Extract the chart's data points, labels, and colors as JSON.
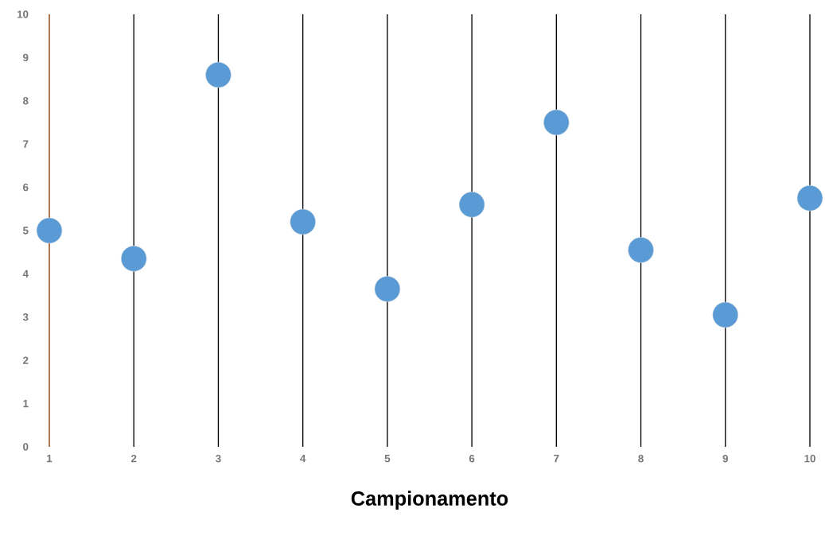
{
  "chart_data": {
    "type": "scatter",
    "xlabel": "Campionamento",
    "x": [
      1,
      2,
      3,
      4,
      5,
      6,
      7,
      8,
      9,
      10
    ],
    "values": [
      5.0,
      4.35,
      8.6,
      5.2,
      3.65,
      5.6,
      7.5,
      4.55,
      3.05,
      5.75
    ],
    "color": "#5b9bd5",
    "xlim": [
      1,
      10
    ],
    "ylim": [
      0,
      10
    ],
    "xticks": [
      1,
      2,
      3,
      4,
      5,
      6,
      7,
      8,
      9,
      10
    ],
    "yticks": [
      0,
      1,
      2,
      3,
      4,
      5,
      6,
      7,
      8,
      9,
      10
    ],
    "grid": "x",
    "marker": "circle"
  }
}
